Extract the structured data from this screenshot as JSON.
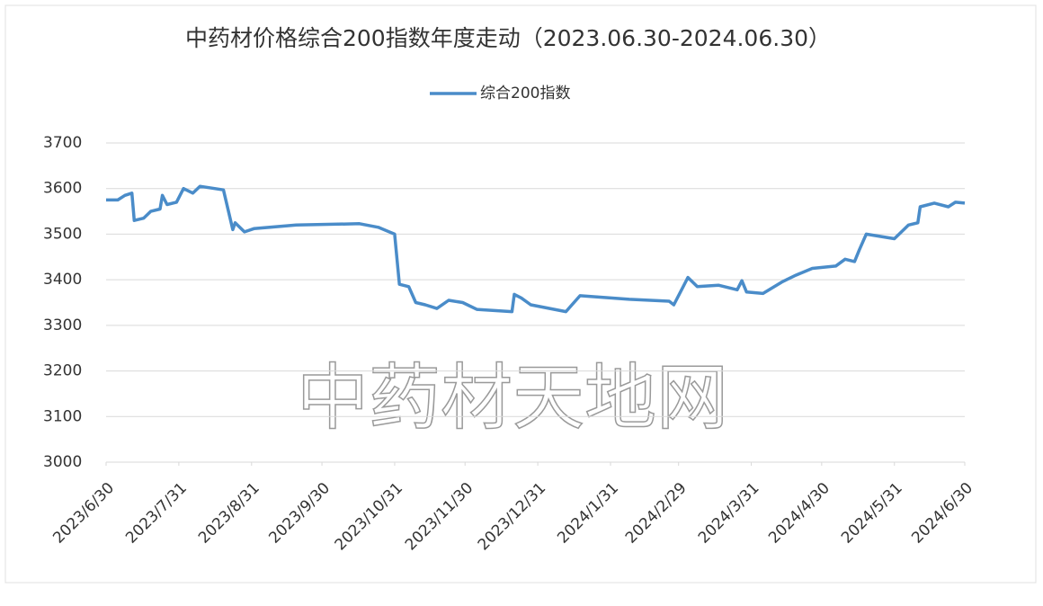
{
  "chart_data": {
    "type": "line",
    "title": "中药材价格综合200指数年度走动（2023.06.30-2024.06.30）",
    "watermark": "中药材天地网",
    "x": [
      "2023/6/30",
      "2023/7/5",
      "2023/7/8",
      "2023/7/11",
      "2023/7/12",
      "2023/7/16",
      "2023/7/19",
      "2023/7/23",
      "2023/7/24",
      "2023/7/26",
      "2023/7/30",
      "2023/8/2",
      "2023/8/6",
      "2023/8/9",
      "2023/8/19",
      "2023/8/23",
      "2023/8/24",
      "2023/8/28",
      "2023/9/1",
      "2023/9/19",
      "2023/10/16",
      "2023/10/24",
      "2023/10/31",
      "2023/11/2",
      "2023/11/6",
      "2023/11/9",
      "2023/11/13",
      "2023/11/18",
      "2023/11/23",
      "2023/11/29",
      "2023/12/5",
      "2023/12/20",
      "2023/12/21",
      "2023/12/24",
      "2023/12/28",
      "2024/1/12",
      "2024/1/18",
      "2024/2/8",
      "2024/2/25",
      "2024/2/27",
      "2024/3/4",
      "2024/3/8",
      "2024/3/17",
      "2024/3/25",
      "2024/3/27",
      "2024/3/29",
      "2024/4/5",
      "2024/4/13",
      "2024/4/19",
      "2024/4/26",
      "2024/5/6",
      "2024/5/10",
      "2024/5/14",
      "2024/5/16",
      "2024/5/19",
      "2024/5/31",
      "2024/6/6",
      "2024/6/10",
      "2024/6/11",
      "2024/6/17",
      "2024/6/23",
      "2024/6/26",
      "2024/6/30"
    ],
    "series": [
      {
        "name": "综合200指数",
        "color": "#4a8cc9",
        "values": [
          3575,
          3575,
          3585,
          3590,
          3530,
          3535,
          3550,
          3555,
          3585,
          3565,
          3570,
          3600,
          3590,
          3605,
          3597,
          3510,
          3525,
          3505,
          3512,
          3520,
          3523,
          3515,
          3500,
          3390,
          3385,
          3350,
          3345,
          3337,
          3355,
          3350,
          3335,
          3330,
          3368,
          3360,
          3345,
          3330,
          3365,
          3357,
          3353,
          3345,
          3405,
          3385,
          3388,
          3378,
          3398,
          3373,
          3370,
          3395,
          3410,
          3425,
          3430,
          3445,
          3440,
          3465,
          3500,
          3490,
          3520,
          3525,
          3560,
          3568,
          3560,
          3570,
          3568
        ]
      }
    ],
    "xlim": [
      "2023/6/30",
      "2024/6/30"
    ],
    "xticks": [
      "2023/6/30",
      "2023/7/31",
      "2023/8/31",
      "2023/9/30",
      "2023/10/31",
      "2023/11/30",
      "2023/12/31",
      "2024/1/31",
      "2024/2/29",
      "2024/3/31",
      "2024/4/30",
      "2024/5/31",
      "2024/6/30"
    ],
    "ylim": [
      3000,
      3700
    ],
    "yticks": [
      3000,
      3100,
      3200,
      3300,
      3400,
      3500,
      3600,
      3700
    ],
    "grid": true,
    "legend": "top"
  }
}
